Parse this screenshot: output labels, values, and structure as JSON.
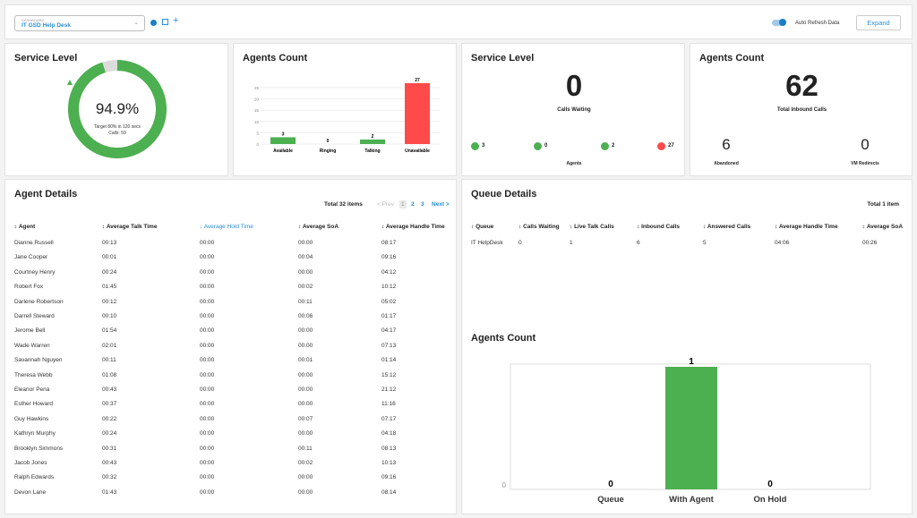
{
  "header": {
    "dashboard_label": "DASHBOARD",
    "dashboard_value": "IT GSD Help Desk",
    "auto_refresh_label": "Auto Refresh Data",
    "auto_refresh_on": true,
    "expand_label": "Expand"
  },
  "service_level": {
    "title": "Service Level",
    "percent": 94.9,
    "percent_label": "94.9%",
    "target": "Target 80% in 120 secs",
    "calls": "Calls: 59"
  },
  "agents_count_chart": {
    "title": "Agents Count"
  },
  "chart_data": [
    {
      "type": "bar",
      "categories": [
        "Available",
        "Ringing",
        "Talking",
        "Unavailable"
      ],
      "values": [
        3,
        0,
        2,
        27
      ],
      "colors": [
        "#4caf50",
        "#4caf50",
        "#4caf50",
        "#ff4a4a"
      ],
      "yticks": [
        0,
        5,
        10,
        15,
        20,
        25
      ],
      "ylim": [
        0,
        27
      ],
      "grid": true
    },
    {
      "type": "bar",
      "categories": [
        "Queue",
        "With Agent",
        "On Hold"
      ],
      "values": [
        0,
        1,
        0
      ],
      "colors": [
        "#4caf50",
        "#4caf50",
        "#4caf50"
      ],
      "yticks": [
        0
      ],
      "ylim": [
        0,
        1
      ]
    }
  ],
  "service_level2": {
    "title": "Service Level",
    "calls_waiting": "0",
    "calls_waiting_label": "Calls Waiting",
    "agents": [
      {
        "value": "3",
        "color": "#4caf50"
      },
      {
        "value": "0",
        "color": "#4caf50"
      },
      {
        "value": "2",
        "color": "#4caf50"
      },
      {
        "value": "27",
        "color": "#ff4a4a"
      }
    ],
    "agents_label": "Agents"
  },
  "agents_count2": {
    "title": "Agents Count",
    "total": "62",
    "total_label": "Total Inbound Calls",
    "abandoned": "6",
    "abandoned_label": "Abandoned",
    "vm": "0",
    "vm_label": "VM Redirects"
  },
  "agent_details": {
    "title": "Agent Details",
    "total": "Total 32 items",
    "prev": "< Prev",
    "pages": [
      "1",
      "2",
      "3"
    ],
    "next": "Next >",
    "columns": [
      "Agent",
      "Average Talk Time",
      "Average Hold Time",
      "Average SoA",
      "Average Handle Time"
    ],
    "rows": [
      [
        "Dianne Russell",
        "00:13",
        "00:00",
        "00:00",
        "08:17"
      ],
      [
        "Jane Cooper",
        "00:01",
        "00:00",
        "00:04",
        "09:16"
      ],
      [
        "Courtney Henry",
        "00:24",
        "00:00",
        "00:00",
        "04:12"
      ],
      [
        "Robert Fox",
        "01:45",
        "00:00",
        "00:02",
        "10:12"
      ],
      [
        "Darlene Robertson",
        "00:12",
        "00:00",
        "00:11",
        "05:02"
      ],
      [
        "Darrell Steward",
        "00:10",
        "00:00",
        "00:06",
        "01:17"
      ],
      [
        "Jerome Bell",
        "01:54",
        "00:00",
        "00:00",
        "04:17"
      ],
      [
        "Wade Warren",
        "02:01",
        "00:00",
        "00:00",
        "07:13"
      ],
      [
        "Savannah Nguyen",
        "00:11",
        "00:00",
        "00:01",
        "01:14"
      ],
      [
        "Theresa Webb",
        "01:08",
        "00:00",
        "00:00",
        "15:12"
      ],
      [
        "Eleanor Pena",
        "00:43",
        "00:00",
        "00:00",
        "21:12"
      ],
      [
        "Esther Howard",
        "00:37",
        "00:00",
        "00:00",
        "11:16"
      ],
      [
        "Guy Hawkins",
        "00:22",
        "00:00",
        "00:07",
        "07:17"
      ],
      [
        "Kathryn Murphy",
        "00:24",
        "00:00",
        "00:00",
        "04:18"
      ],
      [
        "Brooklyn Simmons",
        "00:31",
        "00:00",
        "00:11",
        "08:13"
      ],
      [
        "Jacob Jones",
        "00:43",
        "00:00",
        "00:02",
        "10:13"
      ],
      [
        "Ralph Edwards",
        "00:32",
        "00:00",
        "00:00",
        "09:16"
      ],
      [
        "Devon Lane",
        "01:43",
        "00:00",
        "00:00",
        "08:14"
      ]
    ]
  },
  "queue_details": {
    "title": "Queue Details",
    "total": "Total 1 item",
    "columns": [
      "Queue",
      "Calls Waiting",
      "Live Talk Calls",
      "Inbound Calls",
      "Answered Calls",
      "Average Handle Time",
      "Average SoA"
    ],
    "rows": [
      [
        "IT HelpDesk",
        "0",
        "1",
        "6",
        "5",
        "04:06",
        "00:26"
      ]
    ]
  },
  "agents_count3": {
    "title": "Agents Count"
  }
}
